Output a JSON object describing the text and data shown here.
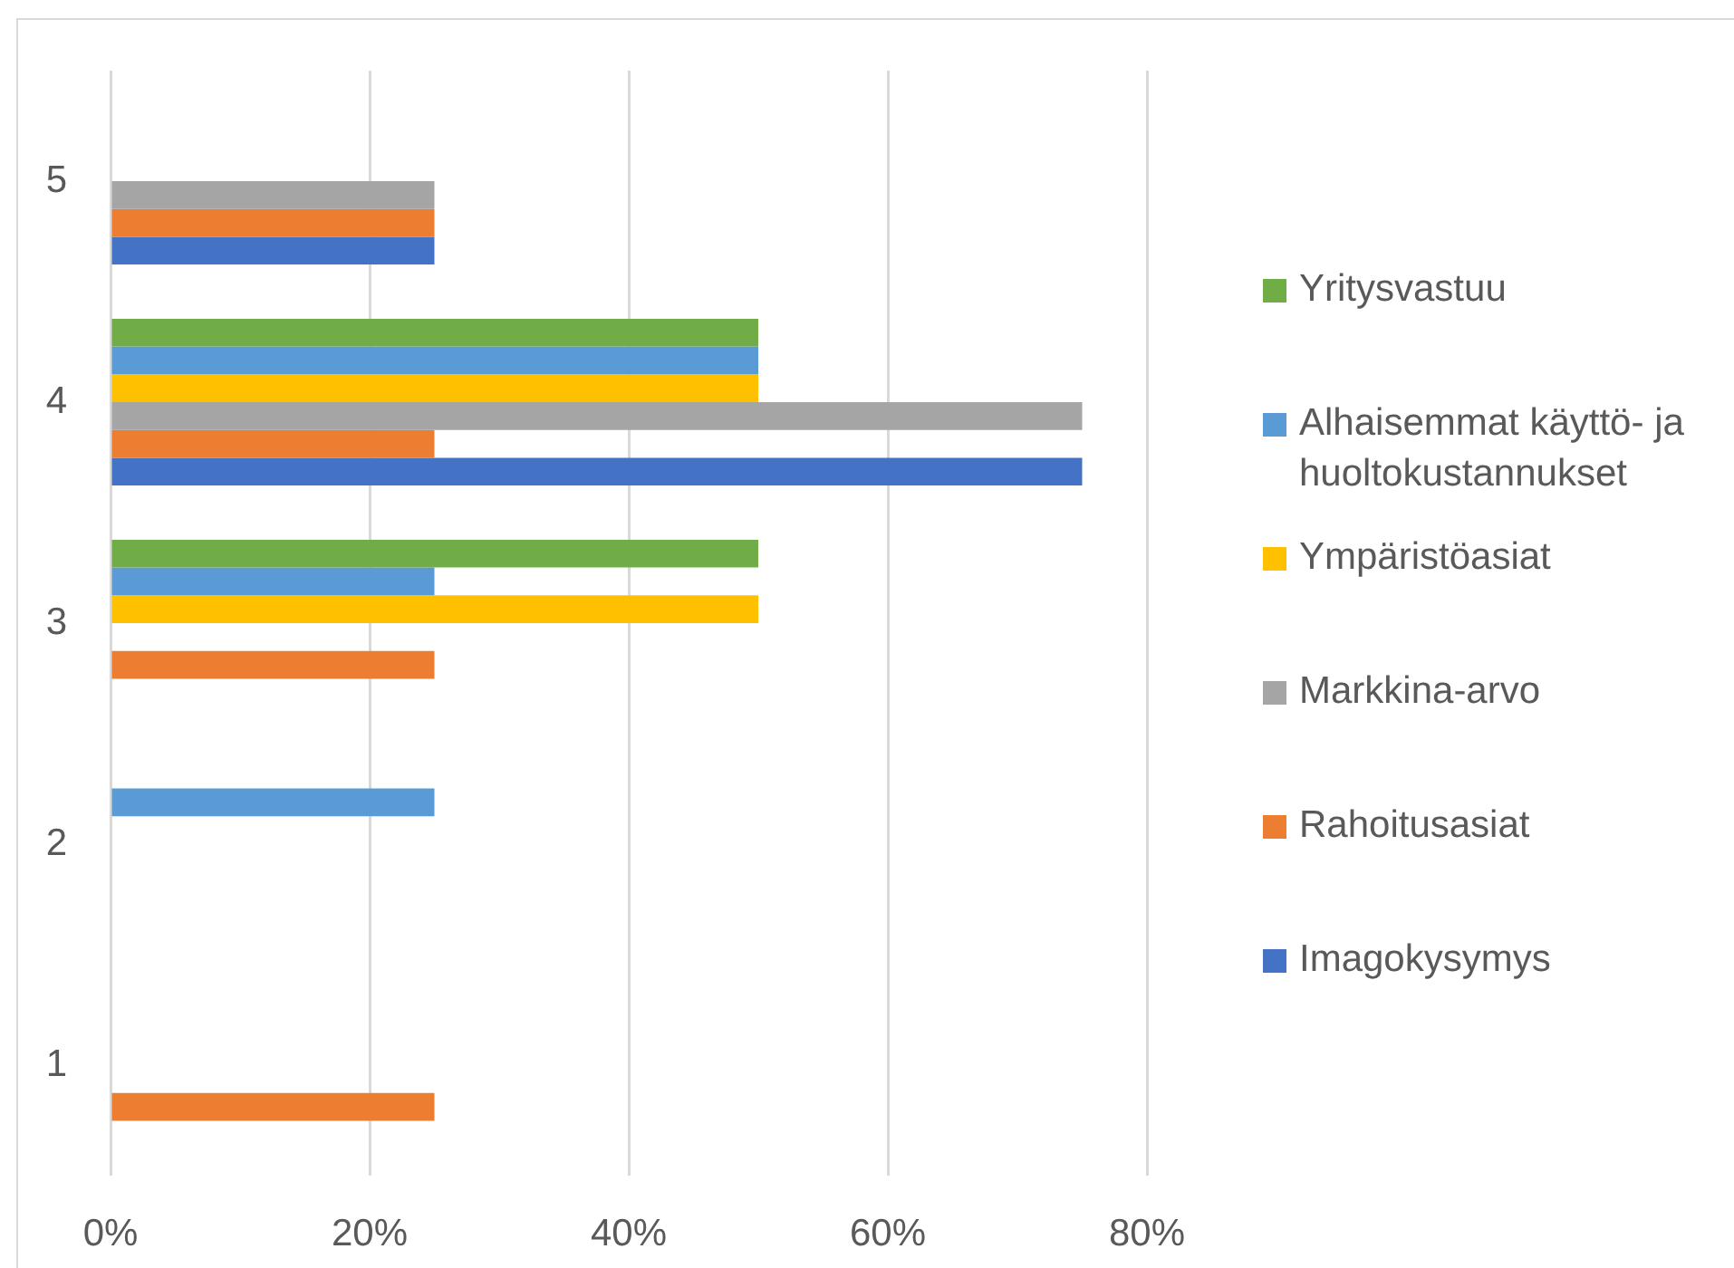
{
  "chart_data": {
    "type": "bar",
    "orientation": "horizontal",
    "categories": [
      "5",
      "4",
      "3",
      "2",
      "1"
    ],
    "series": [
      {
        "name": "Yritysvastuu",
        "color": "#70ad47",
        "values": [
          0,
          50,
          50,
          0,
          0
        ]
      },
      {
        "name": "Alhaisemmat käyttö- ja huoltokustannukset",
        "color": "#5b9bd5",
        "values": [
          0,
          50,
          25,
          25,
          0
        ]
      },
      {
        "name": "Ympäristöasiat",
        "color": "#ffc000",
        "values": [
          0,
          50,
          50,
          0,
          0
        ]
      },
      {
        "name": "Markkina-arvo",
        "color": "#a5a5a5",
        "values": [
          25,
          75,
          0,
          0,
          0
        ]
      },
      {
        "name": "Rahoitusasiat",
        "color": "#ed7d31",
        "values": [
          25,
          25,
          25,
          0,
          25
        ]
      },
      {
        "name": "Imagokysymys",
        "color": "#4472c4",
        "values": [
          25,
          75,
          0,
          0,
          0
        ]
      }
    ],
    "xlim": [
      0,
      80
    ],
    "xticks": [
      {
        "value": 0,
        "label": "0%"
      },
      {
        "value": 20,
        "label": "20%"
      },
      {
        "value": 40,
        "label": "40%"
      },
      {
        "value": 60,
        "label": "60%"
      },
      {
        "value": 80,
        "label": "80%"
      }
    ],
    "grid": "x",
    "legend": "right"
  }
}
